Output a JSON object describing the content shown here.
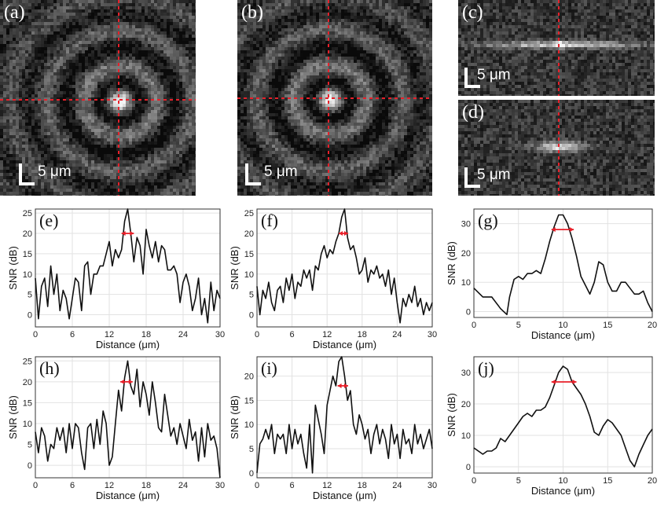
{
  "images": [
    {
      "id": "a",
      "label": "(a)",
      "scale": "5 μm"
    },
    {
      "id": "b",
      "label": "(b)",
      "scale": "5 μm"
    },
    {
      "id": "c",
      "label": "(c)",
      "scale": "5 μm"
    },
    {
      "id": "d",
      "label": "(d)",
      "scale": "5 μm"
    }
  ],
  "colors": {
    "crosshair": "#e8202a",
    "fwhm_arrow": "#e8202a",
    "line": "#111111",
    "grid": "#e2e2e2",
    "frame": "#333333"
  },
  "chart_data": [
    {
      "id": "e",
      "type": "line",
      "label": "(e)",
      "xlabel": "Distance (μm)",
      "ylabel": "SNR (dB)",
      "xlim": [
        0,
        30
      ],
      "ylim": [
        -3,
        26
      ],
      "xticks": [
        0,
        6,
        12,
        18,
        24,
        30
      ],
      "yticks": [
        0,
        5,
        10,
        15,
        20,
        25
      ],
      "grid": true,
      "fwhm": {
        "x1": 14.0,
        "x2": 16.0,
        "y": 20
      },
      "x": [
        0,
        0.5,
        1,
        1.5,
        2,
        2.5,
        3,
        3.5,
        4,
        4.5,
        5,
        5.5,
        6,
        6.5,
        7,
        7.5,
        8,
        8.5,
        9,
        9.5,
        10,
        10.5,
        11,
        11.5,
        12,
        12.5,
        13,
        13.5,
        14,
        14.5,
        15,
        15.5,
        16,
        16.5,
        17,
        17.5,
        18,
        18.5,
        19,
        19.5,
        20,
        20.5,
        21,
        21.5,
        22,
        22.5,
        23,
        23.5,
        24,
        24.5,
        25,
        25.5,
        26,
        26.5,
        27,
        27.5,
        28,
        28.5,
        29,
        29.5,
        30
      ],
      "y": [
        9,
        -1,
        7,
        9,
        2,
        12,
        5,
        10,
        1,
        6,
        4,
        -1,
        4,
        9,
        8,
        1,
        12,
        13,
        5,
        10,
        10,
        12,
        12,
        15,
        18,
        12,
        16,
        14,
        16,
        23,
        26,
        20,
        13,
        19,
        17,
        10,
        21,
        17,
        14,
        18,
        13,
        17,
        16,
        11,
        11,
        12,
        10,
        3,
        8,
        10,
        7,
        1,
        4,
        9,
        0,
        4,
        -2,
        8,
        1,
        6,
        4
      ]
    },
    {
      "id": "f",
      "type": "line",
      "label": "(f)",
      "xlabel": "Distance (μm)",
      "ylabel": "SNR (dB)",
      "xlim": [
        0,
        30
      ],
      "ylim": [
        -3,
        26
      ],
      "xticks": [
        0,
        6,
        12,
        18,
        24,
        30
      ],
      "yticks": [
        0,
        5,
        10,
        15,
        20,
        25
      ],
      "grid": true,
      "fwhm": {
        "x1": 14.0,
        "x2": 15.6,
        "y": 20
      },
      "x": [
        0,
        0.5,
        1,
        1.5,
        2,
        2.5,
        3,
        3.5,
        4,
        4.5,
        5,
        5.5,
        6,
        6.5,
        7,
        7.5,
        8,
        8.5,
        9,
        9.5,
        10,
        10.5,
        11,
        11.5,
        12,
        12.5,
        13,
        13.5,
        14,
        14.5,
        15,
        15.5,
        16,
        16.5,
        17,
        17.5,
        18,
        18.5,
        19,
        19.5,
        20,
        20.5,
        21,
        21.5,
        22,
        22.5,
        23,
        23.5,
        24,
        24.5,
        25,
        25.5,
        26,
        26.5,
        27,
        27.5,
        28,
        28.5,
        29,
        29.5,
        30
      ],
      "y": [
        7,
        0,
        6,
        4,
        8,
        3,
        1,
        6,
        7,
        3,
        9,
        6,
        10,
        4,
        8,
        7,
        11,
        9,
        11,
        6,
        12,
        11,
        15,
        17,
        14,
        16,
        15,
        18,
        20,
        24,
        26,
        19,
        16,
        17,
        14,
        10,
        11,
        14,
        8,
        11,
        10,
        12,
        9,
        10,
        7,
        11,
        5,
        9,
        3,
        -2,
        4,
        2,
        5,
        3,
        7,
        2,
        4,
        0,
        3,
        1,
        3
      ]
    },
    {
      "id": "g",
      "type": "line",
      "label": "(g)",
      "xlabel": "Distance (μm)",
      "ylabel": "SNR (dB)",
      "xlim": [
        0,
        20
      ],
      "ylim": [
        -2,
        35
      ],
      "xticks": [
        0,
        5,
        10,
        15,
        20
      ],
      "yticks": [
        0,
        10,
        20,
        30
      ],
      "grid": true,
      "fwhm": {
        "x1": 8.7,
        "x2": 11.2,
        "y": 28
      },
      "x": [
        0,
        1,
        2,
        3,
        3.7,
        4,
        4.5,
        5,
        5.5,
        6,
        6.5,
        7,
        7.5,
        8,
        8.5,
        9,
        9.5,
        10,
        10.5,
        11,
        11.5,
        12,
        12.5,
        13,
        13.5,
        14,
        14.5,
        15,
        15.5,
        16,
        16.5,
        17,
        17.5,
        18,
        18.5,
        19,
        19.5,
        20
      ],
      "y": [
        8,
        5,
        5,
        1,
        -1,
        5,
        11,
        12,
        11,
        13,
        13,
        14,
        13,
        18,
        24,
        29,
        33,
        33,
        30,
        25,
        19,
        12,
        9,
        6,
        10,
        17,
        16,
        10,
        7,
        7,
        10,
        10,
        8,
        6,
        6,
        7,
        3,
        0
      ]
    },
    {
      "id": "h",
      "type": "line",
      "label": "(h)",
      "xlabel": "Distance (μm)",
      "ylabel": "SNR (dB)",
      "xlim": [
        0,
        30
      ],
      "ylim": [
        -3,
        26
      ],
      "xticks": [
        0,
        6,
        12,
        18,
        24,
        30
      ],
      "yticks": [
        0,
        5,
        10,
        15,
        20,
        25
      ],
      "grid": true,
      "fwhm": {
        "x1": 13.8,
        "x2": 15.8,
        "y": 20
      },
      "x": [
        0,
        0.5,
        1,
        1.5,
        2,
        2.5,
        3,
        3.5,
        4,
        4.5,
        5,
        5.5,
        6,
        6.5,
        7,
        7.5,
        8,
        8.5,
        9,
        9.5,
        10,
        10.5,
        11,
        11.5,
        12,
        12.5,
        13,
        13.5,
        14,
        14.5,
        15,
        15.5,
        16,
        16.5,
        17,
        17.5,
        18,
        18.5,
        19,
        19.5,
        20,
        20.5,
        21,
        21.5,
        22,
        22.5,
        23,
        23.5,
        24,
        24.5,
        25,
        25.5,
        26,
        26.5,
        27,
        27.5,
        28,
        28.5,
        29,
        29.5,
        30
      ],
      "y": [
        8,
        3,
        9,
        7,
        1,
        5,
        4,
        9,
        6,
        9,
        3,
        10,
        4,
        10,
        9,
        3,
        -1,
        9,
        10,
        4,
        11,
        5,
        13,
        10,
        0,
        2,
        10,
        18,
        13,
        21,
        25,
        19,
        17,
        23,
        14,
        20,
        17,
        12,
        20,
        15,
        9,
        8,
        17,
        12,
        7,
        9,
        5,
        10,
        7,
        4,
        11,
        6,
        8,
        1,
        9,
        2,
        10,
        6,
        7,
        4,
        -3
      ]
    },
    {
      "id": "i",
      "type": "line",
      "label": "(i)",
      "xlabel": "Distance (μm)",
      "ylabel": "SNR (dB)",
      "xlim": [
        0,
        30
      ],
      "ylim": [
        -1,
        24
      ],
      "xticks": [
        0,
        6,
        12,
        18,
        24,
        30
      ],
      "yticks": [
        0,
        5,
        10,
        15,
        20
      ],
      "grid": true,
      "fwhm": {
        "x1": 13.8,
        "x2": 15.6,
        "y": 18
      },
      "x": [
        0,
        0.5,
        1,
        1.5,
        2,
        2.5,
        3,
        3.5,
        4,
        4.5,
        5,
        5.5,
        6,
        6.5,
        7,
        7.5,
        8,
        8.5,
        9,
        9.5,
        10,
        10.5,
        11,
        11.5,
        12,
        12.5,
        13,
        13.5,
        14,
        14.5,
        15,
        15.5,
        16,
        16.5,
        17,
        17.5,
        18,
        18.5,
        19,
        19.5,
        20,
        20.5,
        21,
        21.5,
        22,
        22.5,
        23,
        23.5,
        24,
        24.5,
        25,
        25.5,
        26,
        26.5,
        27,
        27.5,
        28,
        28.5,
        29,
        29.5,
        30
      ],
      "y": [
        0,
        6,
        7,
        9,
        7,
        10,
        4,
        8,
        7,
        8,
        4,
        10,
        5,
        9,
        6,
        8,
        4,
        1,
        10,
        0,
        14,
        11,
        8,
        4,
        14,
        17,
        20,
        18,
        23,
        24,
        20,
        15,
        17,
        10,
        8,
        12,
        10,
        7,
        9,
        4,
        8,
        10,
        6,
        9,
        7,
        3,
        10,
        6,
        8,
        3,
        9,
        6,
        7,
        4,
        10,
        6,
        8,
        5,
        7,
        9,
        5
      ]
    },
    {
      "id": "j",
      "type": "line",
      "label": "(j)",
      "xlabel": "Distance (μm)",
      "ylabel": "SNR (dB)",
      "xlim": [
        0,
        20
      ],
      "ylim": [
        -2,
        35
      ],
      "xticks": [
        0,
        5,
        10,
        15,
        20
      ],
      "yticks": [
        0,
        10,
        20,
        30
      ],
      "grid": true,
      "fwhm": {
        "x1": 8.7,
        "x2": 11.5,
        "y": 27
      },
      "x": [
        0,
        0.5,
        1,
        1.5,
        2,
        2.5,
        3,
        3.5,
        4,
        4.5,
        5,
        5.5,
        6,
        6.5,
        7,
        7.5,
        8,
        8.5,
        9,
        9.5,
        10,
        10.5,
        11,
        11.5,
        12,
        12.5,
        13,
        13.5,
        14,
        14.5,
        15,
        15.5,
        16,
        16.5,
        17,
        17.5,
        18,
        18.5,
        19,
        19.5,
        20
      ],
      "y": [
        6,
        5,
        4,
        5,
        5,
        6,
        9,
        8,
        10,
        12,
        14,
        16,
        17,
        16,
        18,
        18,
        19,
        22,
        26,
        30,
        32,
        31,
        27,
        25,
        23,
        20,
        16,
        11,
        10,
        13,
        15,
        14,
        12,
        10,
        6,
        2,
        0,
        4,
        7,
        10,
        12
      ]
    }
  ]
}
